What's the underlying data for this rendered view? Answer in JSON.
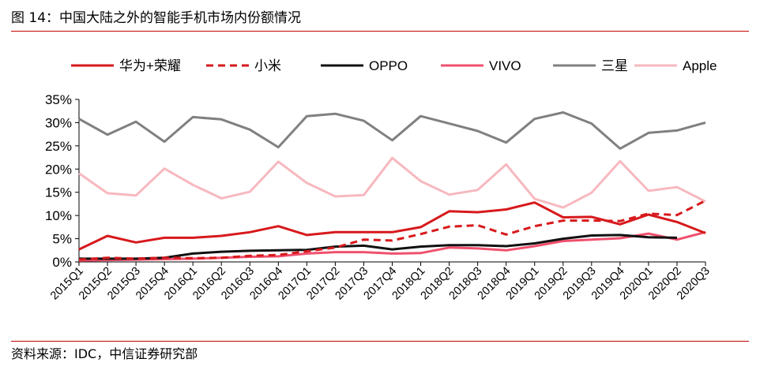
{
  "figure": {
    "title": "图 14：中国大陆之外的智能手机市场内份额情况",
    "source": "资料来源：IDC，中信证券研究部"
  },
  "chart_data": {
    "type": "line",
    "title": "",
    "xlabel": "",
    "ylabel": "",
    "ylim": [
      0,
      35
    ],
    "yticks": [
      "0%",
      "5%",
      "10%",
      "15%",
      "20%",
      "25%",
      "30%",
      "35%"
    ],
    "grid": false,
    "legend_position": "top",
    "categories": [
      "2015Q1",
      "2015Q2",
      "2015Q3",
      "2015Q4",
      "2016Q1",
      "2016Q2",
      "2016Q3",
      "2016Q4",
      "2017Q1",
      "2017Q2",
      "2017Q3",
      "2017Q4",
      "2018Q1",
      "2018Q2",
      "2018Q3",
      "2018Q4",
      "2019Q1",
      "2019Q2",
      "2019Q3",
      "2019Q4",
      "2020Q1",
      "2020Q2",
      "2020Q3"
    ],
    "series": [
      {
        "name": "华为+荣耀",
        "color": "#d7191c",
        "dash": "solid",
        "values": [
          2.7,
          5.6,
          4.2,
          5.2,
          5.2,
          5.6,
          6.4,
          7.7,
          5.8,
          6.4,
          6.4,
          6.4,
          7.5,
          10.9,
          10.7,
          11.3,
          12.8,
          9.6,
          9.7,
          8.1,
          10.2,
          8.6,
          6.2
        ]
      },
      {
        "name": "小米",
        "color": "#d7191c",
        "dash": "dashed",
        "values": [
          0.5,
          0.9,
          0.7,
          0.9,
          0.8,
          0.9,
          1.3,
          1.5,
          2.3,
          3.1,
          4.8,
          4.6,
          6.0,
          7.6,
          7.9,
          5.9,
          7.7,
          8.9,
          8.9,
          8.8,
          10.4,
          10.1,
          13.2
        ]
      },
      {
        "name": "OPPO",
        "color": "#111111",
        "dash": "solid",
        "values": [
          0.7,
          0.7,
          0.7,
          0.9,
          1.8,
          2.2,
          2.4,
          2.5,
          2.6,
          3.3,
          3.5,
          2.7,
          3.3,
          3.6,
          3.6,
          3.4,
          4.0,
          5.0,
          5.7,
          5.8,
          5.3,
          5.2,
          null
        ]
      },
      {
        "name": "VIVO",
        "color": "#f0506e",
        "dash": "solid",
        "values": [
          0.3,
          0.4,
          0.5,
          0.6,
          0.7,
          0.9,
          1.1,
          1.2,
          1.8,
          2.1,
          2.1,
          1.8,
          1.9,
          3.1,
          2.9,
          2.5,
          3.4,
          4.5,
          4.8,
          5.1,
          6.1,
          4.8,
          6.4
        ]
      },
      {
        "name": "三星",
        "color": "#808080",
        "dash": "solid",
        "values": [
          30.8,
          27.4,
          30.2,
          25.9,
          31.2,
          30.7,
          28.5,
          24.7,
          31.4,
          31.9,
          30.4,
          26.2,
          31.4,
          29.8,
          28.2,
          25.7,
          30.8,
          32.2,
          29.8,
          24.4,
          27.8,
          28.3,
          30.0
        ]
      },
      {
        "name": "Apple",
        "color": "#f7b8bf",
        "dash": "solid",
        "values": [
          19.1,
          14.8,
          14.3,
          20.1,
          16.6,
          13.7,
          15.1,
          21.6,
          17.0,
          14.1,
          14.4,
          22.4,
          17.4,
          14.5,
          15.5,
          21.0,
          13.6,
          11.7,
          14.9,
          21.7,
          15.3,
          16.1,
          13.0
        ]
      }
    ]
  }
}
